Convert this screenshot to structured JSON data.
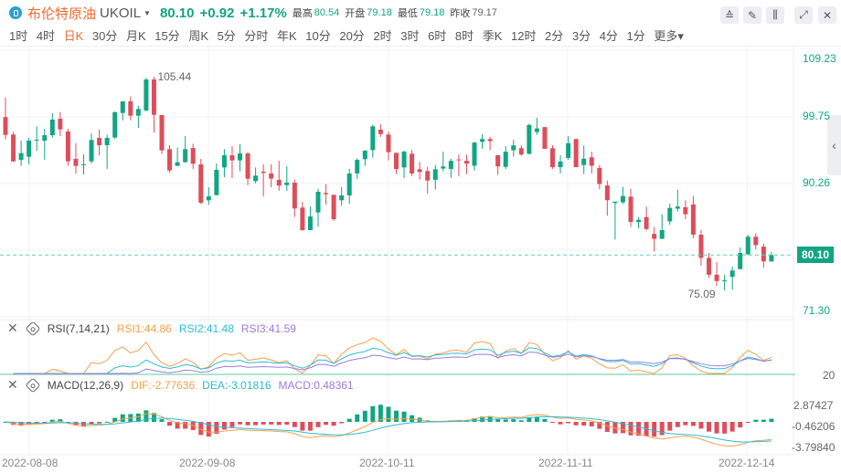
{
  "header": {
    "name": "布伦特原油",
    "symbol": "UKOIL",
    "price": "80.10",
    "change": "+0.92",
    "change_pct": "+1.17%",
    "stats": [
      {
        "label": "最高",
        "value": "80.54"
      },
      {
        "label": "开盘",
        "value": "79.18"
      },
      {
        "label": "最低",
        "value": "79.18"
      },
      {
        "label": "昨收",
        "value": "79.17"
      }
    ],
    "toolbar": [
      {
        "icon": "line-chart-icon",
        "glyph": "≙"
      },
      {
        "icon": "pencil-icon",
        "glyph": "✎"
      },
      {
        "icon": "candlestick-icon",
        "glyph": "⫼"
      },
      {
        "icon": "fullscreen-icon",
        "glyph": "⤢"
      },
      {
        "icon": "close-icon",
        "glyph": "✕"
      }
    ]
  },
  "periods": [
    "1时",
    "4时",
    "日K",
    "30分",
    "月K",
    "15分",
    "周K",
    "5分",
    "分时",
    "年K",
    "10分",
    "20分",
    "2时",
    "3时",
    "6时",
    "8时",
    "季K",
    "12时",
    "2分",
    "3分",
    "4分",
    "1分",
    "更多"
  ],
  "active_period": "日K",
  "colors": {
    "up": "#12a583",
    "down": "#de4d5a",
    "rsi1": "#f5a04a",
    "rsi2": "#2bbbd8",
    "rsi3": "#9b7be0"
  },
  "price_axis": [
    "109.23",
    "99.75",
    "90.26",
    "80.10",
    "71.30"
  ],
  "current_price": "80.10",
  "annotations": {
    "high": "105.44",
    "low": "75.09"
  },
  "rsi": {
    "title": "RSI(7,14,21)",
    "rsi1": "RSI1:44.86",
    "rsi2": "RSI2:41.48",
    "rsi3": "RSI3:41.59",
    "axis": "20"
  },
  "macd": {
    "title": "MACD(12,26,9)",
    "dif": "DIF:-2.77636",
    "dea": "DEA:-3.01816",
    "macd": "MACD:0.48361",
    "axis": [
      "2.87427",
      "-0.46206",
      "-3.79840"
    ]
  },
  "dates": [
    "2022-08-08",
    "2022-09-08",
    "2022-10-11",
    "2022-11-11",
    "2022-12-14"
  ],
  "chart_data": {
    "type": "candlestick",
    "fields": [
      "open",
      "high",
      "low",
      "close"
    ],
    "candles": [
      [
        99.71,
        102.52,
        96.55,
        97.19
      ],
      [
        97.24,
        97.63,
        93.34,
        93.43
      ],
      [
        93.64,
        96.37,
        92.78,
        94.6
      ],
      [
        94.08,
        96.76,
        93.0,
        96.37
      ],
      [
        96.42,
        98.41,
        94.94,
        96.5
      ],
      [
        96.37,
        98.06,
        93.64,
        97.15
      ],
      [
        97.15,
        100.27,
        96.81,
        99.36
      ],
      [
        99.49,
        100.44,
        97.02,
        97.97
      ],
      [
        97.67,
        98.06,
        92.78,
        93.43
      ],
      [
        93.77,
        96.03,
        91.7,
        92.78
      ],
      [
        92.87,
        94.42,
        91.57,
        93.0
      ],
      [
        93.43,
        97.41,
        93.13,
        96.46
      ],
      [
        96.76,
        97.97,
        94.29,
        95.72
      ],
      [
        95.72,
        97.24,
        92.35,
        96.76
      ],
      [
        96.81,
        100.53,
        96.63,
        100.4
      ],
      [
        100.31,
        101.96,
        99.23,
        101.96
      ],
      [
        101.96,
        102.65,
        99.27,
        99.92
      ],
      [
        99.92,
        101.31,
        98.19,
        100.87
      ],
      [
        100.66,
        105.3,
        100.53,
        105.07
      ],
      [
        105.07,
        105.44,
        97.54,
        100.05
      ],
      [
        100.01,
        100.01,
        94.47,
        94.99
      ],
      [
        95.16,
        95.72,
        91.83,
        92.13
      ],
      [
        92.78,
        95.38,
        92.78,
        93.3
      ],
      [
        93.3,
        97.02,
        93.3,
        95.16
      ],
      [
        95.33,
        95.94,
        92.35,
        93.08
      ],
      [
        93.0,
        93.77,
        87.37,
        87.54
      ],
      [
        87.89,
        89.75,
        87.24,
        88.45
      ],
      [
        88.62,
        93.13,
        88.62,
        92.22
      ],
      [
        92.56,
        95.16,
        91.18,
        94.29
      ],
      [
        94.29,
        95.59,
        91.05,
        93.56
      ],
      [
        93.56,
        95.85,
        92.0,
        94.55
      ],
      [
        94.55,
        94.73,
        90.05,
        90.96
      ],
      [
        90.61,
        92.56,
        90.31,
        91.39
      ],
      [
        91.96,
        93.0,
        88.45,
        91.78
      ],
      [
        91.7,
        93.0,
        89.75,
        90.96
      ],
      [
        90.79,
        93.52,
        89.23,
        89.97
      ],
      [
        90.05,
        92.74,
        89.23,
        90.4
      ],
      [
        90.4,
        90.83,
        85.51,
        86.72
      ],
      [
        86.85,
        87.67,
        83.56,
        83.64
      ],
      [
        83.64,
        87.02,
        83.64,
        85.59
      ],
      [
        86.16,
        89.53,
        84.12,
        89.1
      ],
      [
        88.93,
        90.18,
        87.28,
        88.75
      ],
      [
        88.67,
        88.67,
        84.94,
        85.2
      ],
      [
        87.89,
        89.75,
        87.11,
        88.58
      ],
      [
        88.58,
        92.35,
        87.37,
        91.7
      ],
      [
        91.7,
        93.86,
        90.92,
        93.64
      ],
      [
        93.73,
        95.03,
        92.78,
        94.94
      ],
      [
        95.03,
        98.62,
        93.95,
        98.41
      ],
      [
        97.93,
        98.71,
        96.89,
        97.32
      ],
      [
        97.24,
        97.67,
        93.56,
        94.73
      ],
      [
        94.64,
        94.64,
        91.61,
        92.35
      ],
      [
        92.56,
        94.94,
        91.05,
        94.81
      ],
      [
        94.51,
        95.03,
        91.35,
        91.7
      ],
      [
        92.3,
        93.34,
        90.83,
        91.91
      ],
      [
        92.05,
        92.65,
        88.8,
        90.7
      ],
      [
        90.8,
        92.9,
        89.4,
        92.3
      ],
      [
        92.4,
        94.8,
        92.0,
        92.7
      ],
      [
        92.35,
        93.8,
        91.05,
        93.5
      ],
      [
        93.7,
        94.4,
        91.3,
        93.6
      ],
      [
        93.5,
        94.4,
        91.6,
        93.1
      ],
      [
        92.8,
        96.2,
        92.1,
        96.1
      ],
      [
        96.2,
        97.3,
        95.2,
        96.6
      ],
      [
        96.6,
        96.9,
        95.0,
        96.3
      ],
      [
        94.3,
        94.3,
        91.5,
        92.7
      ],
      [
        92.65,
        95.6,
        92.35,
        94.8
      ],
      [
        95.0,
        96.5,
        94.1,
        95.7
      ],
      [
        95.3,
        95.7,
        94.2,
        94.4
      ],
      [
        94.5,
        98.8,
        94.4,
        98.6
      ],
      [
        97.6,
        99.6,
        97.2,
        98.1
      ],
      [
        98.3,
        98.3,
        95.2,
        95.2
      ],
      [
        95.3,
        95.7,
        92.35,
        92.6
      ],
      [
        92.6,
        94.3,
        91.7,
        93.4
      ],
      [
        93.9,
        97.0,
        93.65,
        96.0
      ],
      [
        96.6,
        96.6,
        92.6,
        92.6
      ],
      [
        92.9,
        95.7,
        91.6,
        93.8
      ],
      [
        94.0,
        94.8,
        91.7,
        92.8
      ],
      [
        92.5,
        92.9,
        89.5,
        90.2
      ],
      [
        90.0,
        90.7,
        85.7,
        87.9
      ],
      [
        87.5,
        87.7,
        82.3,
        87.7
      ],
      [
        87.6,
        89.8,
        87.4,
        88.5
      ],
      [
        88.4,
        89.5,
        84.1,
        84.8
      ],
      [
        84.8,
        85.5,
        83.9,
        85.1
      ],
      [
        85.5,
        87.0,
        83.6,
        83.8
      ],
      [
        83.1,
        84.1,
        80.6,
        82.4
      ],
      [
        82.4,
        85.9,
        82.4,
        83.65
      ],
      [
        84.9,
        87.4,
        84.4,
        86.8
      ],
      [
        86.7,
        89.4,
        86.3,
        87.0
      ],
      [
        86.9,
        87.9,
        85.2,
        85.9
      ],
      [
        87.3,
        88.5,
        82.5,
        83.0
      ],
      [
        83.0,
        83.7,
        78.6,
        79.7
      ],
      [
        79.7,
        80.4,
        76.85,
        77.3
      ],
      [
        77.3,
        79.1,
        75.7,
        76.4
      ],
      [
        76.5,
        77.3,
        75.09,
        76.5
      ],
      [
        77.0,
        78.45,
        75.2,
        77.9
      ],
      [
        78.1,
        81.2,
        78.1,
        80.4
      ],
      [
        80.2,
        83.0,
        80.1,
        82.7
      ],
      [
        82.7,
        83.2,
        80.9,
        81.5
      ],
      [
        81.3,
        81.7,
        78.3,
        79.2
      ],
      [
        79.18,
        80.54,
        79.18,
        80.1
      ]
    ],
    "x_labels": [
      "2022-08-08",
      "2022-09-08",
      "2022-10-11",
      "2022-11-11",
      "2022-12-14"
    ],
    "high_label": 105.44,
    "low_label": 75.09
  }
}
